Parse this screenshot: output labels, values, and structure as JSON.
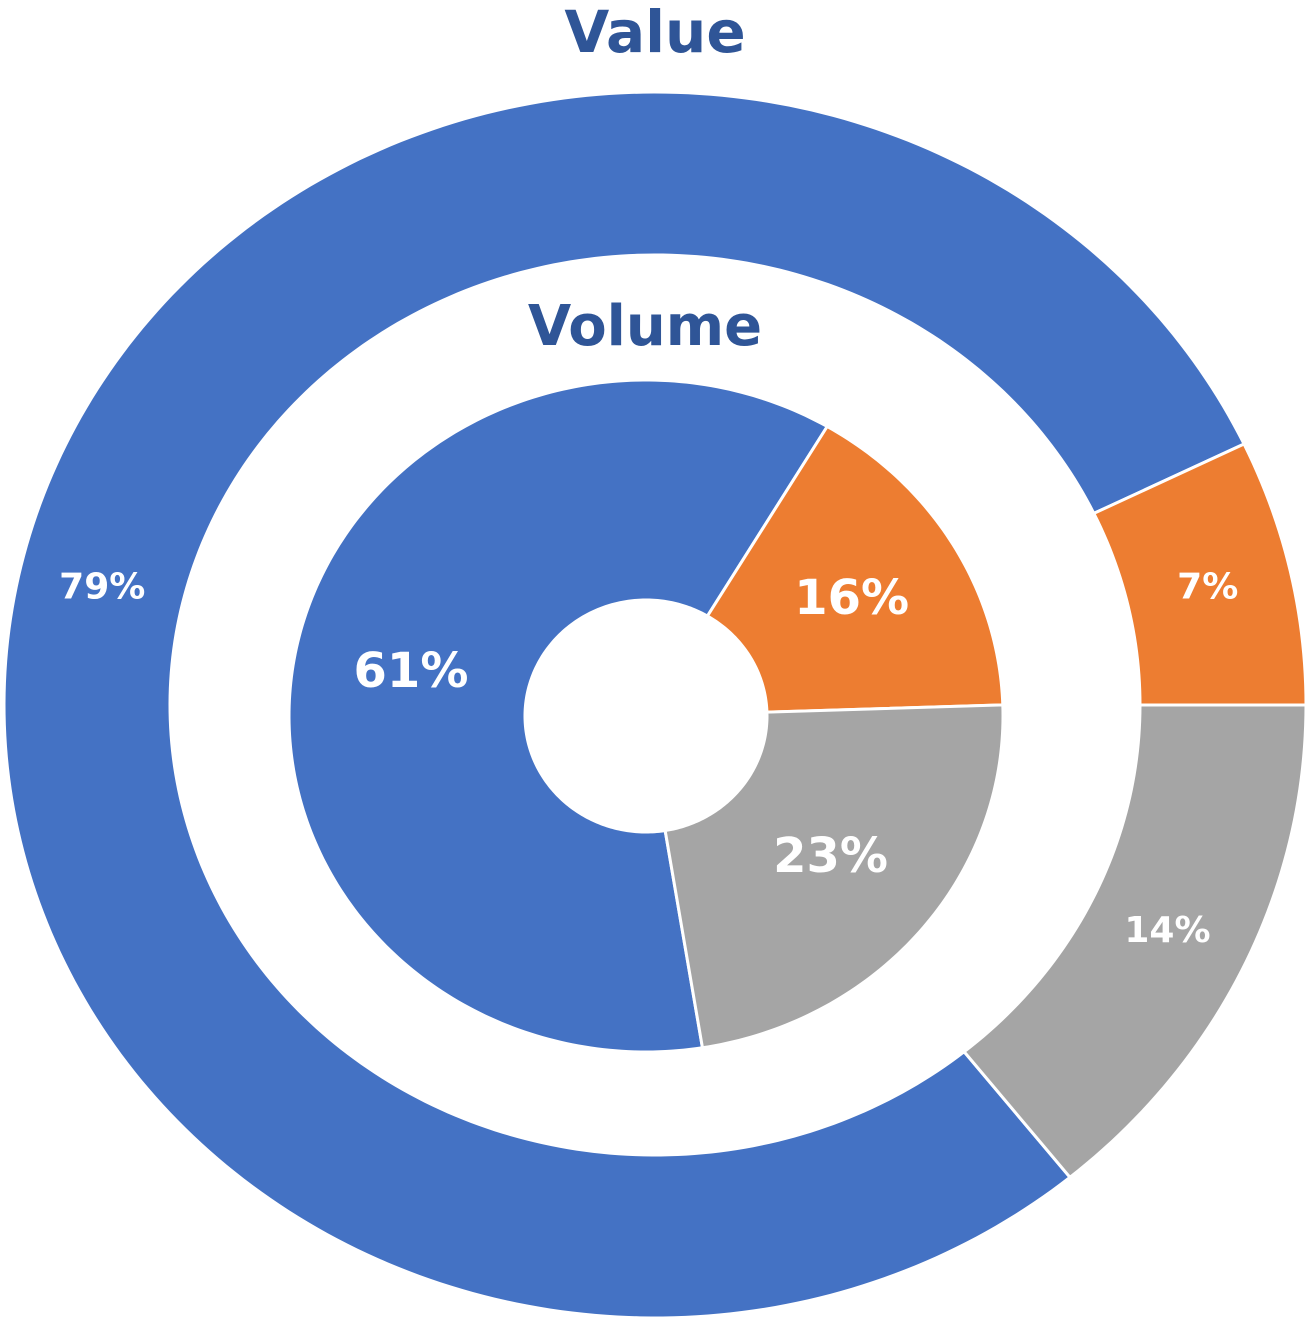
{
  "chart_data": {
    "type": "donut",
    "colors": [
      "#4472c4",
      "#ed7d31",
      "#a5a5a5"
    ],
    "series": [
      {
        "name": "Value",
        "values": [
          79,
          7,
          14
        ],
        "value_labels": [
          "79%",
          "7%",
          "14%"
        ]
      },
      {
        "name": "Volume",
        "values": [
          61,
          16,
          23
        ],
        "value_labels": [
          "61%",
          "16%",
          "23%"
        ]
      }
    ]
  }
}
